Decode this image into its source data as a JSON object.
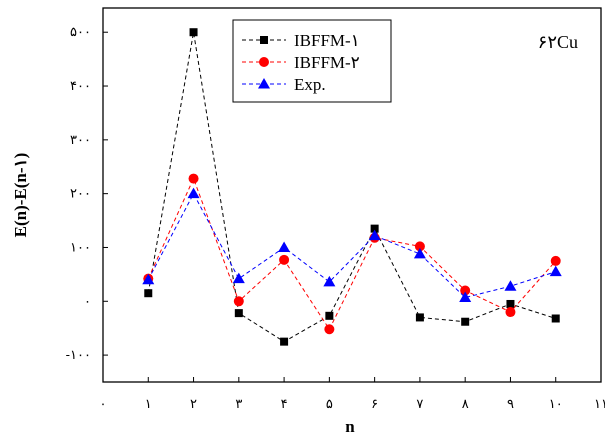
{
  "chart_data": {
    "type": "line",
    "xlabel": "n",
    "ylabel": "E(n)-E(n-۱)",
    "annotation": "۶۲Cu",
    "x_ticks": [
      {
        "value": 0,
        "label": "۰"
      },
      {
        "value": 1,
        "label": "۱"
      },
      {
        "value": 2,
        "label": "۲"
      },
      {
        "value": 3,
        "label": "۳"
      },
      {
        "value": 4,
        "label": "۴"
      },
      {
        "value": 5,
        "label": "۵"
      },
      {
        "value": 6,
        "label": "۶"
      },
      {
        "value": 7,
        "label": "۷"
      },
      {
        "value": 8,
        "label": "۸"
      },
      {
        "value": 9,
        "label": "۹"
      },
      {
        "value": 10,
        "label": "۱۰"
      },
      {
        "value": 11,
        "label": "۱۱"
      }
    ],
    "y_ticks": [
      {
        "value": -100,
        "label": "-۱۰۰"
      },
      {
        "value": 0,
        "label": "۰"
      },
      {
        "value": 100,
        "label": "۱۰۰"
      },
      {
        "value": 200,
        "label": "۲۰۰"
      },
      {
        "value": 300,
        "label": "۳۰۰"
      },
      {
        "value": 400,
        "label": "۴۰۰"
      },
      {
        "value": 500,
        "label": "۵۰۰"
      }
    ],
    "xlim": [
      0,
      11
    ],
    "ylim": [
      -150,
      545
    ],
    "x": [
      1,
      2,
      3,
      4,
      5,
      6,
      7,
      8,
      9,
      10
    ],
    "series": [
      {
        "name": "IBFFM-۱",
        "color": "#000000",
        "marker": "square",
        "values": [
          15,
          500,
          -22,
          -75,
          -27,
          135,
          -30,
          -38,
          -5,
          -32
        ]
      },
      {
        "name": "IBFFM-۲",
        "color": "#ff0000",
        "marker": "circle",
        "values": [
          42,
          228,
          0,
          77,
          -52,
          118,
          102,
          20,
          -20,
          75
        ]
      },
      {
        "name": "Exp.",
        "color": "#0000ff",
        "marker": "triangle",
        "values": [
          40,
          200,
          42,
          100,
          36,
          122,
          88,
          7,
          28,
          55
        ]
      }
    ],
    "legend_position": "top-center",
    "grid": false
  }
}
